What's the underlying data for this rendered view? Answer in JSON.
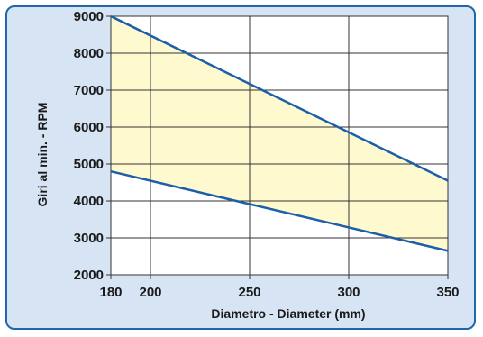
{
  "chart_data": {
    "type": "area",
    "title": "",
    "xlabel": "Diametro - Diameter (mm)",
    "ylabel": "Giri al min. - RPM",
    "xlim": [
      180,
      350
    ],
    "ylim": [
      2000,
      9000
    ],
    "x_ticks": [
      180,
      200,
      250,
      300,
      350
    ],
    "y_ticks": [
      2000,
      3000,
      4000,
      5000,
      6000,
      7000,
      8000,
      9000
    ],
    "x_grid": [
      200,
      250,
      300,
      350
    ],
    "grid": true,
    "series": [
      {
        "x": [
          180,
          350
        ],
        "values": [
          9000,
          4550
        ]
      },
      {
        "x": [
          180,
          350
        ],
        "values": [
          4800,
          2650
        ]
      }
    ],
    "fill_between_series": true,
    "colors": {
      "line": "#1b5fa8",
      "fill": "#fff9d0",
      "frame_bg": "#d6e4f4",
      "frame_border": "#1f67a8",
      "grid": "#333333"
    }
  }
}
